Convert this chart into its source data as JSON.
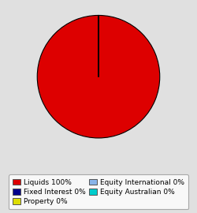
{
  "slices": [
    {
      "label": "Liquids 100%",
      "value": 100,
      "color": "#dd0000"
    },
    {
      "label": "Fixed Interest 0%",
      "value": 0.0001,
      "color": "#00008b"
    },
    {
      "label": "Property 0%",
      "value": 0.0001,
      "color": "#dddd00"
    },
    {
      "label": "Equity International 0%",
      "value": 0.0001,
      "color": "#8ab4e8"
    },
    {
      "label": "Equity Australian 0%",
      "value": 0.0001,
      "color": "#00cccc"
    }
  ],
  "background_color": "#e0e0e0",
  "legend_background": "#ffffff",
  "pie_edge_color": "#000000",
  "pie_linewidth": 0.8,
  "startangle": 90,
  "figsize": [
    2.5,
    2.7
  ],
  "dpi": 100,
  "legend_order": [
    0,
    2,
    4,
    1,
    3
  ],
  "legend_fontsize": 6.5,
  "legend_ncol": 2
}
